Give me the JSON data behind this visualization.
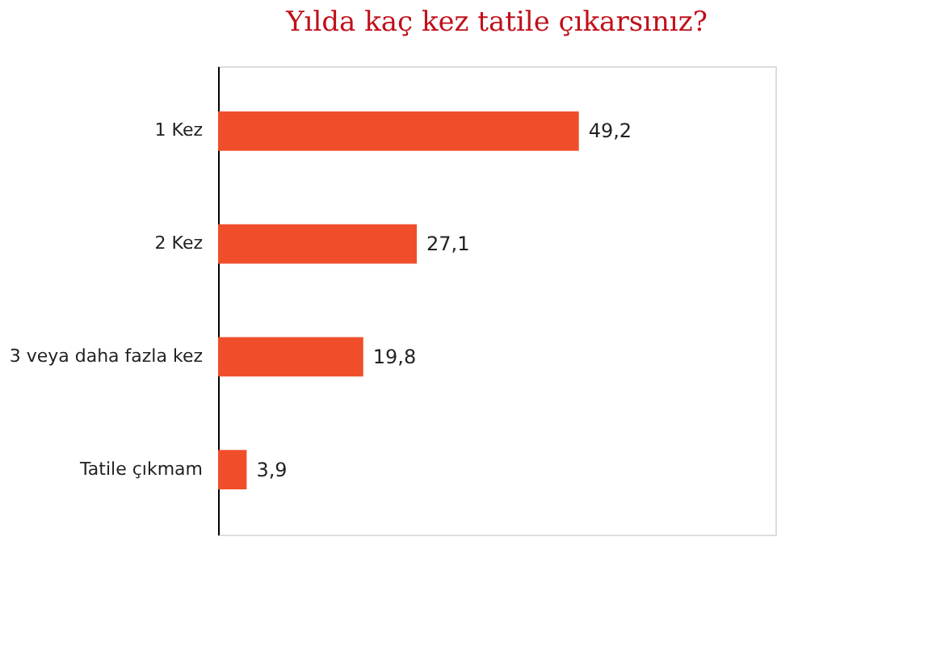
{
  "chart_data": {
    "type": "bar",
    "orientation": "horizontal",
    "title": "Yılda kaç kez tatile çıkarsınız?",
    "categories": [
      "1 Kez",
      "2 Kez",
      "3 veya daha fazla kez",
      "Tatile çıkmam"
    ],
    "values": [
      49.2,
      27.1,
      19.8,
      3.9
    ],
    "value_labels": [
      "49,2",
      "27,1",
      "19,8",
      "3,9"
    ],
    "color": "#f04e2b",
    "xlim": [
      0,
      76
    ],
    "tick_labels": "y"
  }
}
